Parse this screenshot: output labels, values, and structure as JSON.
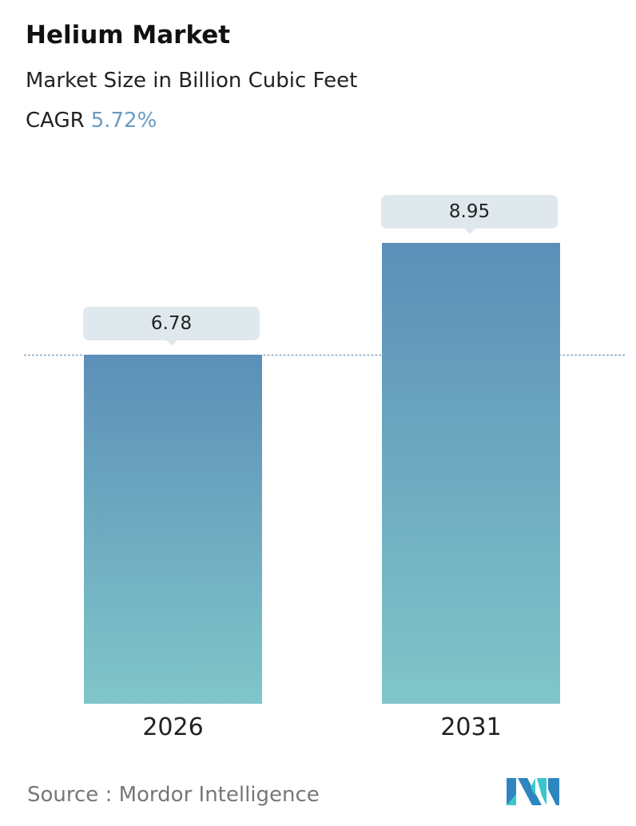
{
  "header": {
    "title": "Helium Market",
    "subtitle": "Market Size in Billion Cubic Feet",
    "cagr_label": "CAGR",
    "cagr_value": "5.72%"
  },
  "chart_data": {
    "type": "bar",
    "title": "Helium Market",
    "ylabel": "Market Size in Billion Cubic Feet",
    "categories": [
      "2026",
      "2031"
    ],
    "values": [
      6.78,
      8.95
    ],
    "value_labels": [
      "6.78",
      "8.95"
    ],
    "reference_line": 6.78,
    "ylim": [
      0,
      10
    ],
    "grid": false
  },
  "footer": {
    "source": "Source :  Mordor Intelligence",
    "logo_text": "Mordor Intelligence"
  },
  "colors": {
    "accent": "#6a9bc3",
    "bar_top": "#5c8fb8",
    "bar_bottom": "#80c6c9"
  }
}
